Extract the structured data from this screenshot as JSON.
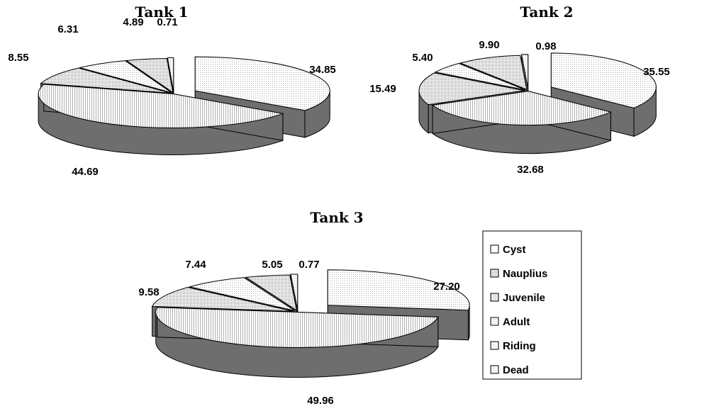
{
  "legend": {
    "placement": "right of Tank 3",
    "entries": [
      "Cyst",
      "Nauplius",
      "Juvenile",
      "Adult",
      "Riding",
      "Dead"
    ]
  },
  "colors": {
    "top_fill": "#ffffff",
    "pattern_dots": "#a8a8a8",
    "side_wall": "#6e6e6e",
    "outline": "#000000"
  },
  "chart_data": [
    {
      "type": "pie",
      "style": "3d-exploded",
      "title": "Tank 1",
      "categories": [
        "Cyst",
        "Juvenile",
        "Riding",
        "Adult",
        "Nauplius",
        "Dead"
      ],
      "values": [
        34.85,
        44.69,
        8.55,
        6.31,
        4.89,
        0.71
      ],
      "labels": [
        "34.85",
        "44.69",
        "8.55",
        "6.31",
        "4.89",
        "0.71"
      ]
    },
    {
      "type": "pie",
      "style": "3d-exploded",
      "title": "Tank 2",
      "categories": [
        "Cyst",
        "Juvenile",
        "Riding",
        "Adult",
        "Nauplius",
        "Dead"
      ],
      "values": [
        35.55,
        32.68,
        15.49,
        5.4,
        9.9,
        0.98
      ],
      "labels": [
        "35.55",
        "32.68",
        "15.49",
        "5.40",
        "9.90",
        "0.98"
      ]
    },
    {
      "type": "pie",
      "style": "3d-exploded",
      "title": "Tank 3",
      "categories": [
        "Cyst",
        "Juvenile",
        "Riding",
        "Adult",
        "Nauplius",
        "Dead"
      ],
      "values": [
        27.2,
        49.96,
        9.58,
        7.44,
        5.05,
        0.77
      ],
      "labels": [
        "27.20",
        "49.96",
        "9.58",
        "7.44",
        "5.05",
        "0.77"
      ]
    }
  ]
}
